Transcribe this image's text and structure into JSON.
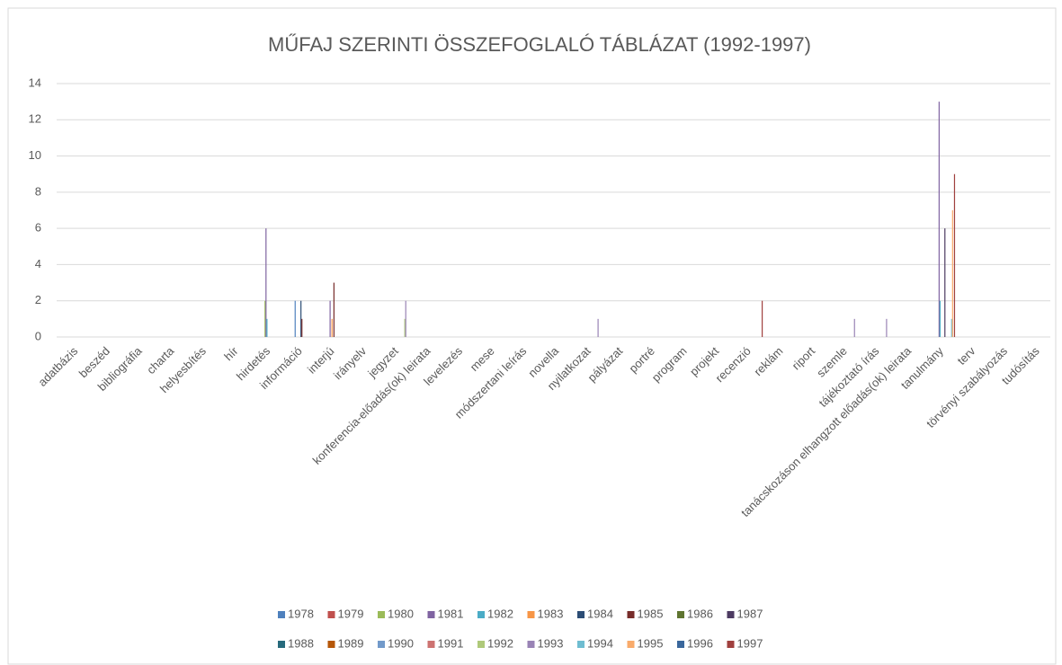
{
  "chart_data": {
    "type": "bar",
    "title": "MŰFAJ SZERINTI ÖSSZEFOGLALÓ TÁBLÁZAT (1992-1997)",
    "categories": [
      "adatbázis",
      "beszéd",
      "bibliográfia",
      "charta",
      "helyesbítés",
      "hír",
      "hirdetés",
      "információ",
      "interjú",
      "irányelv",
      "jegyzet",
      "konferencia-előadás(ok) leirata",
      "levelezés",
      "mese",
      "módszertani leírás",
      "novella",
      "nyilatkozat",
      "pályázat",
      "portré",
      "program",
      "projekt",
      "recenzió",
      "reklám",
      "riport",
      "szemle",
      "tájékoztató írás",
      "tanácskozáson elhangzott előadás(ok) leirata",
      "tanulmány",
      "terv",
      "törvényi szabályozás",
      "tudósítás"
    ],
    "series": [
      {
        "name": "1978",
        "color": "#4f81bd",
        "values": [
          0,
          0,
          0,
          0,
          0,
          0,
          0,
          2,
          0,
          0,
          0,
          0,
          0,
          0,
          0,
          0,
          0,
          0,
          0,
          0,
          0,
          0,
          0,
          0,
          0,
          0,
          0,
          0,
          0,
          0,
          0
        ]
      },
      {
        "name": "1979",
        "color": "#c0504d",
        "values": [
          0,
          0,
          0,
          0,
          0,
          0,
          0,
          0,
          0,
          0,
          0,
          0,
          0,
          0,
          0,
          0,
          0,
          0,
          0,
          0,
          0,
          0,
          0,
          0,
          0,
          0,
          0,
          0,
          0,
          0,
          0
        ]
      },
      {
        "name": "1980",
        "color": "#9bbb59",
        "values": [
          0,
          0,
          0,
          0,
          0,
          0,
          2,
          0,
          0,
          0,
          0,
          0,
          0,
          0,
          0,
          0,
          0,
          0,
          0,
          0,
          0,
          0,
          0,
          0,
          0,
          0,
          0,
          0,
          0,
          0,
          0
        ]
      },
      {
        "name": "1981",
        "color": "#8064a2",
        "values": [
          0,
          0,
          0,
          0,
          0,
          0,
          6,
          0,
          2,
          0,
          0,
          0,
          0,
          0,
          0,
          0,
          0,
          0,
          0,
          0,
          0,
          0,
          0,
          0,
          0,
          0,
          0,
          13,
          0,
          0,
          0
        ]
      },
      {
        "name": "1982",
        "color": "#4bacc6",
        "values": [
          0,
          0,
          0,
          0,
          0,
          0,
          1,
          0,
          0,
          0,
          0,
          0,
          0,
          0,
          0,
          0,
          0,
          0,
          0,
          0,
          0,
          0,
          0,
          0,
          0,
          0,
          0,
          2,
          0,
          0,
          0
        ]
      },
      {
        "name": "1983",
        "color": "#f79646",
        "values": [
          0,
          0,
          0,
          0,
          0,
          0,
          0,
          0,
          1,
          0,
          0,
          0,
          0,
          0,
          0,
          0,
          0,
          0,
          0,
          0,
          0,
          0,
          0,
          0,
          0,
          0,
          0,
          0,
          0,
          0,
          0
        ]
      },
      {
        "name": "1984",
        "color": "#2c4d75",
        "values": [
          0,
          0,
          0,
          0,
          0,
          0,
          0,
          2,
          0,
          0,
          0,
          0,
          0,
          0,
          0,
          0,
          0,
          0,
          0,
          0,
          0,
          0,
          0,
          0,
          0,
          0,
          0,
          0,
          0,
          0,
          0
        ]
      },
      {
        "name": "1985",
        "color": "#772c2a",
        "values": [
          0,
          0,
          0,
          0,
          0,
          0,
          0,
          1,
          3,
          0,
          0,
          0,
          0,
          0,
          0,
          0,
          0,
          0,
          0,
          0,
          0,
          0,
          0,
          0,
          0,
          0,
          0,
          0,
          0,
          0,
          0
        ]
      },
      {
        "name": "1986",
        "color": "#5f7530",
        "values": [
          0,
          0,
          0,
          0,
          0,
          0,
          0,
          0,
          0,
          0,
          0,
          0,
          0,
          0,
          0,
          0,
          0,
          0,
          0,
          0,
          0,
          0,
          0,
          0,
          0,
          0,
          0,
          0,
          0,
          0,
          0
        ]
      },
      {
        "name": "1987",
        "color": "#4d3b62",
        "values": [
          0,
          0,
          0,
          0,
          0,
          0,
          0,
          0,
          0,
          0,
          0,
          0,
          0,
          0,
          0,
          0,
          0,
          0,
          0,
          0,
          0,
          0,
          0,
          0,
          0,
          0,
          0,
          6,
          0,
          0,
          0
        ]
      },
      {
        "name": "1988",
        "color": "#276a7c",
        "values": [
          0,
          0,
          0,
          0,
          0,
          0,
          0,
          0,
          0,
          0,
          0,
          0,
          0,
          0,
          0,
          0,
          0,
          0,
          0,
          0,
          0,
          0,
          0,
          0,
          0,
          0,
          0,
          0,
          0,
          0,
          0
        ]
      },
      {
        "name": "1989",
        "color": "#b65708",
        "values": [
          0,
          0,
          0,
          0,
          0,
          0,
          0,
          0,
          0,
          0,
          0,
          0,
          0,
          0,
          0,
          0,
          0,
          0,
          0,
          0,
          0,
          0,
          0,
          0,
          0,
          0,
          0,
          0,
          0,
          0,
          0
        ]
      },
      {
        "name": "1990",
        "color": "#729aca",
        "values": [
          0,
          0,
          0,
          0,
          0,
          0,
          0,
          0,
          0,
          0,
          0,
          0,
          0,
          0,
          0,
          0,
          0,
          0,
          0,
          0,
          0,
          0,
          0,
          0,
          0,
          0,
          0,
          0,
          0,
          0,
          0
        ]
      },
      {
        "name": "1991",
        "color": "#cd7371",
        "values": [
          0,
          0,
          0,
          0,
          0,
          0,
          0,
          0,
          0,
          0,
          0,
          0,
          0,
          0,
          0,
          0,
          0,
          0,
          0,
          0,
          0,
          0,
          0,
          0,
          0,
          0,
          0,
          0,
          0,
          0,
          0
        ]
      },
      {
        "name": "1992",
        "color": "#afc97a",
        "values": [
          0,
          0,
          0,
          0,
          0,
          0,
          0,
          0,
          0,
          0,
          1,
          0,
          0,
          0,
          0,
          0,
          0,
          0,
          0,
          0,
          0,
          0,
          0,
          0,
          0,
          0,
          0,
          0,
          0,
          0,
          0
        ]
      },
      {
        "name": "1993",
        "color": "#9983b5",
        "values": [
          0,
          0,
          0,
          0,
          0,
          0,
          0,
          0,
          0,
          0,
          2,
          0,
          0,
          0,
          0,
          0,
          1,
          0,
          0,
          0,
          0,
          0,
          0,
          0,
          1,
          1,
          0,
          0,
          0,
          0,
          0
        ]
      },
      {
        "name": "1994",
        "color": "#6fbdd1",
        "values": [
          0,
          0,
          0,
          0,
          0,
          0,
          0,
          0,
          0,
          0,
          0,
          0,
          0,
          0,
          0,
          0,
          0,
          0,
          0,
          0,
          0,
          0,
          0,
          0,
          0,
          0,
          0,
          1,
          0,
          0,
          0
        ]
      },
      {
        "name": "1995",
        "color": "#f9ab6b",
        "values": [
          0,
          0,
          0,
          0,
          0,
          0,
          0,
          0,
          0,
          0,
          0,
          0,
          0,
          0,
          0,
          0,
          0,
          0,
          0,
          0,
          0,
          0,
          0,
          0,
          0,
          0,
          0,
          7,
          0,
          0,
          0
        ]
      },
      {
        "name": "1996",
        "color": "#3a679c",
        "values": [
          0,
          0,
          0,
          0,
          0,
          0,
          0,
          0,
          0,
          0,
          0,
          0,
          0,
          0,
          0,
          0,
          0,
          0,
          0,
          0,
          0,
          0,
          0,
          0,
          0,
          0,
          0,
          0,
          0,
          0,
          0
        ]
      },
      {
        "name": "1997",
        "color": "#a0403e",
        "values": [
          0,
          0,
          0,
          0,
          0,
          0,
          0,
          0,
          0,
          0,
          0,
          0,
          0,
          0,
          0,
          0,
          0,
          0,
          0,
          0,
          0,
          2,
          0,
          0,
          0,
          0,
          0,
          9,
          0,
          0,
          0
        ]
      }
    ],
    "ylim": [
      0,
      14
    ],
    "yticks": [
      0,
      2,
      4,
      6,
      8,
      10,
      12,
      14
    ],
    "grid": true,
    "legend": "bottom"
  }
}
